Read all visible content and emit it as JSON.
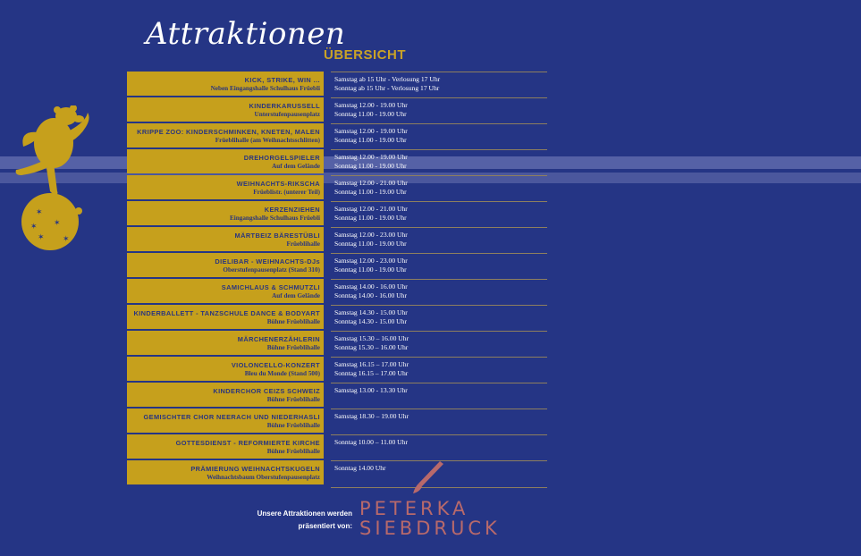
{
  "header": {
    "title": "Attraktionen",
    "subtitle": "ÜBERSICHT"
  },
  "attractions": [
    {
      "name": "KICK, STRIKE, WIN ...",
      "location": "Neben Eingangshalle Schulhaus Früebli",
      "time1": "Samstag ab 15 Uhr - Verlosung 17 Uhr",
      "time2": "Sonntag ab 15 Uhr - Verlosung 17 Uhr"
    },
    {
      "name": "KINDERKARUSSELL",
      "location": "Unterstufenpausenplatz",
      "time1": "Samstag 12.00 - 19.00 Uhr",
      "time2": "Sonntag 11.00 - 19.00 Uhr"
    },
    {
      "name": "KRIPPE ZOO: KINDERSCHMINKEN, KNETEN, MALEN",
      "location": "Früeblihalle (am Weihnachtsschlitten)",
      "time1": "Samstag 12.00 - 19.00 Uhr",
      "time2": "Sonntag 11.00 - 19.00 Uhr"
    },
    {
      "name": "DREHORGELSPIELER",
      "location": "Auf dem Gelände",
      "time1": "Samstag 12.00 - 19.00 Uhr",
      "time2": "Sonntag 11.00 - 19.00 Uhr"
    },
    {
      "name": "WEIHNACHTS-RIKSCHA",
      "location": "Früeblistr. (unterer Teil)",
      "time1": "Samstag 12.00 - 21.00 Uhr",
      "time2": "Sonntag 11.00 - 19.00 Uhr"
    },
    {
      "name": "KERZENZIEHEN",
      "location": "Eingangshalle Schulhaus Früebli",
      "time1": "Samstag 12.00 - 21.00 Uhr",
      "time2": "Sonntag 11.00 - 19.00 Uhr"
    },
    {
      "name": "MÄRTBEIZ BÄRESTÜBLI",
      "location": "Früeblihalle",
      "time1": "Samstag 12.00 - 23.00 Uhr",
      "time2": "Sonntag 11.00 - 19.00 Uhr"
    },
    {
      "name": "DIELIBAR - WEIHNACHTS-DJs",
      "location": "Oberstufenpausenplatz (Stand 310)",
      "time1": "Samstag 12.00 - 23.00 Uhr",
      "time2": "Sonntag 11.00 - 19.00 Uhr"
    },
    {
      "name": "SAMICHLAUS & SCHMUTZLI",
      "location": "Auf dem Gelände",
      "time1": "Samstag 14.00 - 16.00 Uhr",
      "time2": "Sonntag 14.00 - 16.00 Uhr"
    },
    {
      "name": "KINDERBALLETT - TANZSCHULE DANCE & BODYART",
      "location": "Bühne Früeblihalle",
      "time1": "Samstag 14.30 - 15.00 Uhr",
      "time2": "Sonntag 14.30 - 15.00 Uhr"
    },
    {
      "name": "MÄRCHENERZÄHLERIN",
      "location": "Bühne Früeblihalle",
      "time1": "Samstag 15.30 – 16.00 Uhr",
      "time2": "Sonntag 15.30 – 16.00 Uhr"
    },
    {
      "name": "VIOLONCELLO-KONZERT",
      "location": "Bleu du Monde (Stand 500)",
      "time1": "Samstag 16.15 – 17.00 Uhr",
      "time2": "Sonntag 16.15 – 17.00 Uhr"
    },
    {
      "name": "KINDERCHOR CEIZS SCHWEIZ",
      "location": "Bühne Früeblihalle",
      "time1": "Samstag 13.00 - 13.30 Uhr",
      "time2": ""
    },
    {
      "name": "GEMISCHTER CHOR NEERACH UND NIEDERHASLI",
      "location": "Bühne Früeblihalle",
      "time1": "Samstag 18.30 – 19.00 Uhr",
      "time2": ""
    },
    {
      "name": "GOTTESDIENST - REFORMIERTE KIRCHE",
      "location": "Bühne Früeblihalle",
      "time1": "Sonntag 10.00 – 11.00 Uhr",
      "time2": ""
    },
    {
      "name": "PRÄMIERUNG WEIHNACHTSKUGELN",
      "location": "Weihnachtsbaum Oberstufenpausenplatz",
      "time1": "Sonntag 14.00 Uhr",
      "time2": ""
    }
  ],
  "footer": {
    "line1": "Unsere Attraktionen werden",
    "line2": "präsentiert von:",
    "logo_line1": "PETERKA",
    "logo_line2": "SIEBDRUCK"
  },
  "colors": {
    "background": "#253585",
    "label_gold": "#c6a01c",
    "logo": "#b8696b"
  }
}
